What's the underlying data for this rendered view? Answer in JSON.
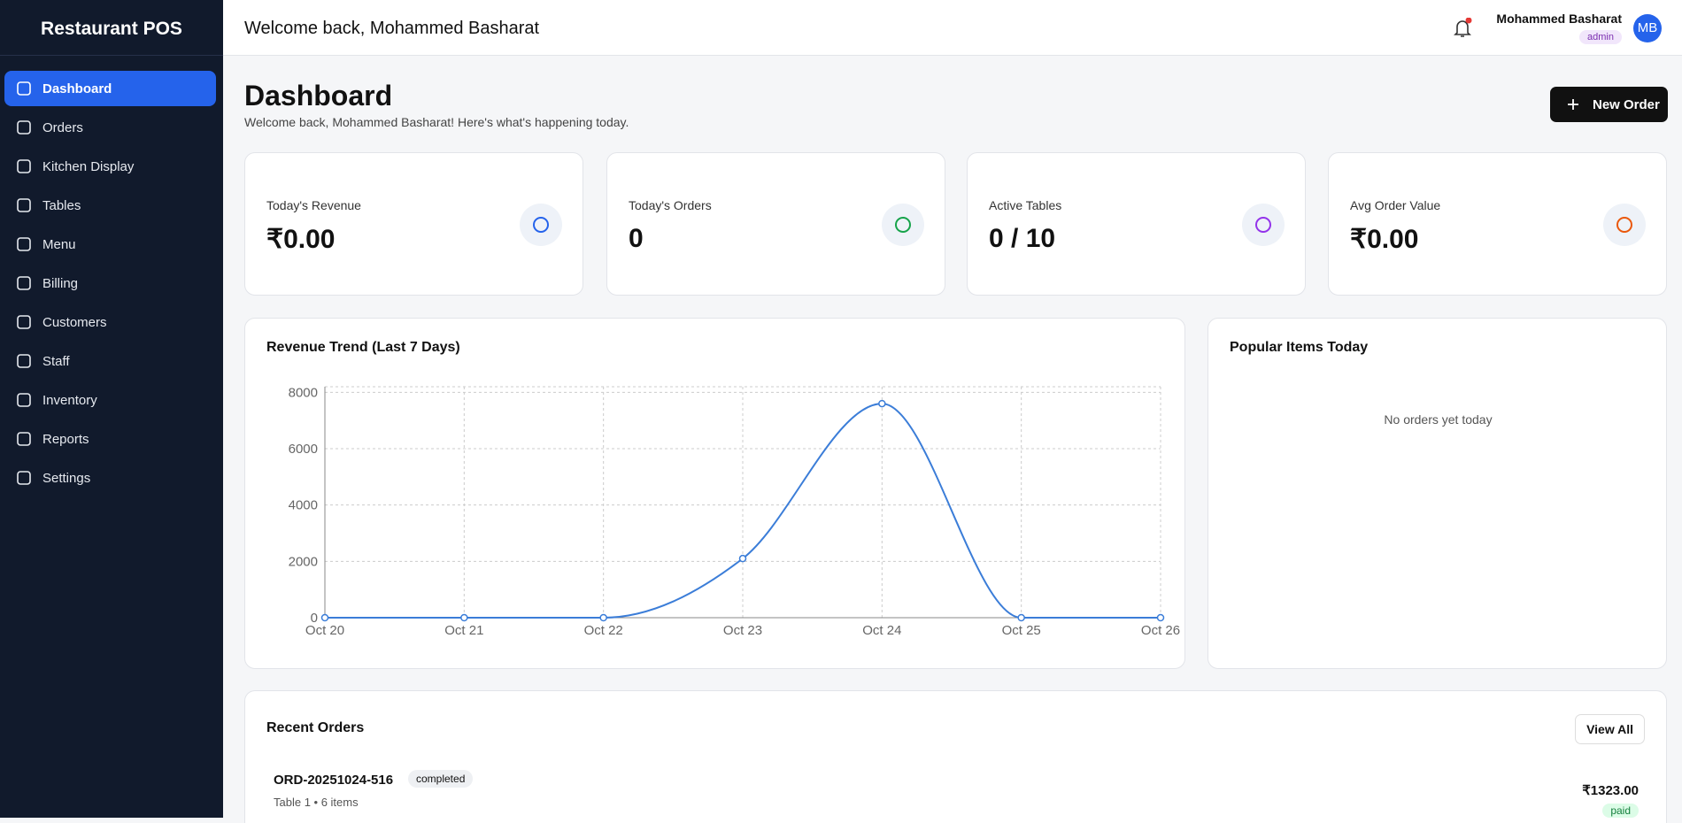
{
  "sidebar": {
    "brand": "Restaurant POS",
    "nav": [
      "Dashboard",
      "Orders",
      "Kitchen Display",
      "Tables",
      "Menu",
      "Billing",
      "Customers",
      "Staff",
      "Inventory",
      "Reports",
      "Settings"
    ]
  },
  "header": {
    "welcome": "Welcome back, Mohammed Basharat",
    "user_name": "Mohammed Basharat",
    "role": "admin",
    "initials": "MB"
  },
  "page": {
    "title": "Dashboard",
    "subtitle": "Welcome back, Mohammed Basharat! Here's what's happening today.",
    "new_order": "New Order"
  },
  "stats": [
    {
      "label": "Today's Revenue",
      "value": "₹0.00"
    },
    {
      "label": "Today's Orders",
      "value": "0"
    },
    {
      "label": "Active Tables",
      "value": "0 / 10"
    },
    {
      "label": "Avg Order Value",
      "value": "₹0.00"
    }
  ],
  "chart_data": {
    "type": "line",
    "title": "Revenue Trend (Last 7 Days)",
    "categories": [
      "Oct 20",
      "Oct 21",
      "Oct 22",
      "Oct 23",
      "Oct 24",
      "Oct 25",
      "Oct 26"
    ],
    "values": [
      0,
      0,
      0,
      2100,
      7600,
      0,
      0
    ],
    "color": "#3b7dd8",
    "ylim": [
      0,
      8200
    ],
    "yticks": [
      0,
      2000,
      4000,
      6000,
      8000
    ],
    "grid": true
  },
  "popular": {
    "title": "Popular Items Today",
    "empty": "No orders yet today"
  },
  "recent_orders": {
    "title": "Recent Orders",
    "view_all": "View All",
    "orders": [
      {
        "id": "ORD-20251024-516",
        "status": "completed",
        "details": "Table 1 • 6 items",
        "amount": "₹1323.00",
        "payment": "paid"
      }
    ]
  }
}
